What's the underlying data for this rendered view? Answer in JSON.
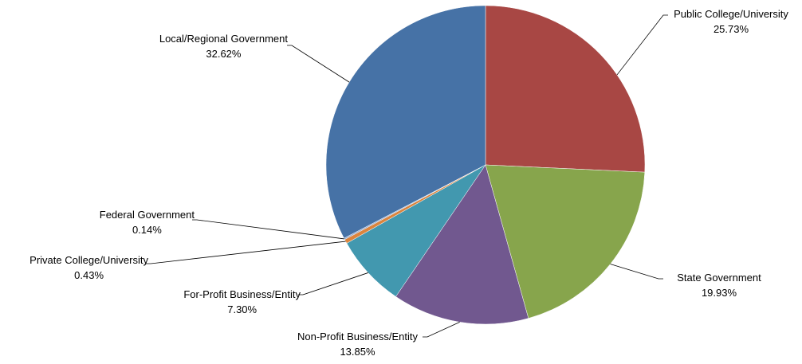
{
  "chart_data": {
    "type": "pie",
    "title": "",
    "start_angle_deg": 0,
    "direction": "clockwise",
    "slices": [
      {
        "name": "Public College/University",
        "value": 25.73,
        "label": "25.73%",
        "color": "#A84744"
      },
      {
        "name": "State Government",
        "value": 19.93,
        "label": "19.93%",
        "color": "#87A54C"
      },
      {
        "name": "Non-Profit Business/Entity",
        "value": 13.85,
        "label": "13.85%",
        "color": "#71588F"
      },
      {
        "name": "For-Profit Business/Entity",
        "value": 7.3,
        "label": "7.30%",
        "color": "#4298AF"
      },
      {
        "name": "Private College/University",
        "value": 0.43,
        "label": "0.43%",
        "color": "#DB843D"
      },
      {
        "name": "Federal Government",
        "value": 0.14,
        "label": "0.14%",
        "color": "#93A9CF"
      },
      {
        "name": "Local/Regional Government",
        "value": 32.62,
        "label": "32.62%",
        "color": "#4672A6"
      }
    ]
  }
}
